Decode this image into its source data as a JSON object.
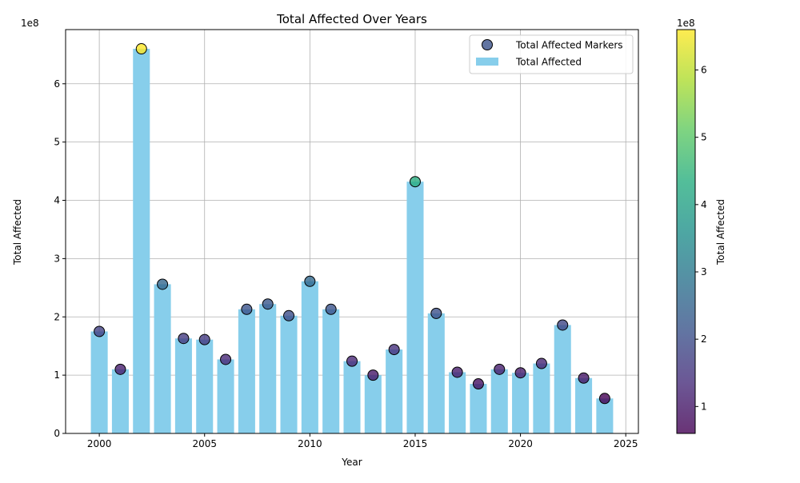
{
  "chart_data": {
    "type": "bar",
    "title": "Total Affected Over Years",
    "xlabel": "Year",
    "ylabel": "Total Affected",
    "y_offset_text": "1e8",
    "x_ticks": [
      2000,
      2005,
      2010,
      2015,
      2020,
      2025
    ],
    "y_ticks": [
      0,
      1,
      2,
      3,
      4,
      5,
      6
    ],
    "xlim": [
      1998.4,
      2025.6
    ],
    "ylim": [
      0,
      6.93
    ],
    "grid": true,
    "legend_position": "upper-right",
    "x": [
      2000,
      2001,
      2002,
      2003,
      2004,
      2005,
      2006,
      2007,
      2008,
      2009,
      2010,
      2011,
      2012,
      2013,
      2014,
      2015,
      2016,
      2017,
      2018,
      2019,
      2020,
      2021,
      2022,
      2023,
      2024
    ],
    "values": [
      1.75,
      1.1,
      6.6,
      2.56,
      1.63,
      1.61,
      1.27,
      2.13,
      2.22,
      2.02,
      2.61,
      2.13,
      1.24,
      1.0,
      1.44,
      4.32,
      2.06,
      1.05,
      0.85,
      1.1,
      1.04,
      1.2,
      1.86,
      0.95,
      0.6
    ],
    "series": [
      {
        "name": "Total Affected Markers",
        "kind": "scatter"
      },
      {
        "name": "Total Affected",
        "kind": "bar",
        "color": "#87ceeb"
      }
    ],
    "colorbar": {
      "label": "Total Affected",
      "offset_text": "1e8",
      "ticks": [
        1,
        2,
        3,
        4,
        5,
        6
      ],
      "range": [
        0.6,
        6.6
      ],
      "colormap": "viridis"
    }
  }
}
